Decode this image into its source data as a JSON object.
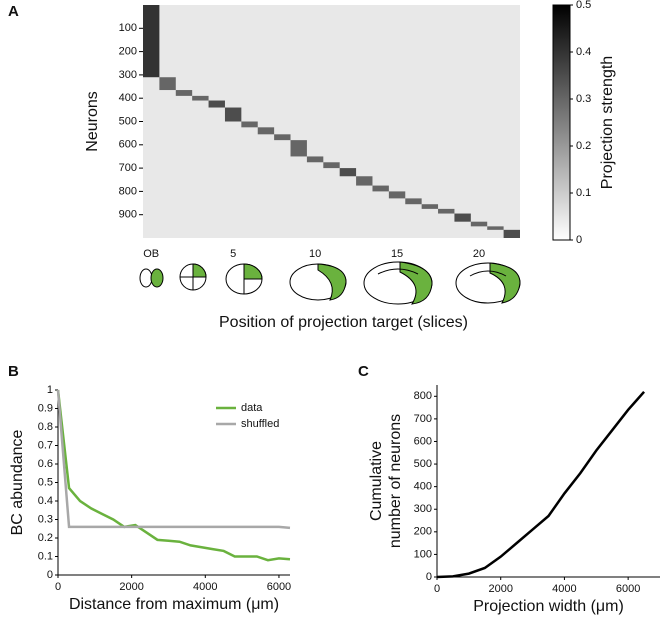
{
  "chart_data": [
    {
      "type": "heatmap",
      "panel_label": "A",
      "ylabel": "Neurons",
      "xlabel": "Position of projection target (slices)",
      "colorbar_label": "Projection strength",
      "categories": [
        "OB",
        null,
        null,
        null,
        null,
        "5",
        null,
        null,
        null,
        null,
        "10",
        null,
        null,
        null,
        null,
        "15",
        null,
        null,
        null,
        null,
        "20",
        null,
        null
      ],
      "ylim": [
        0,
        1000
      ],
      "yticks": [
        100,
        200,
        300,
        400,
        500,
        600,
        700,
        800,
        900
      ],
      "clim": [
        0,
        0.5
      ],
      "cticks": [
        0,
        0.1,
        0.2,
        0.3,
        0.4,
        0.5
      ],
      "segments": [
        {
          "start": 0,
          "end": 310,
          "strength": 0.4
        },
        {
          "start": 310,
          "end": 365,
          "strength": 0.3
        },
        {
          "start": 365,
          "end": 390,
          "strength": 0.3
        },
        {
          "start": 390,
          "end": 410,
          "strength": 0.3
        },
        {
          "start": 410,
          "end": 440,
          "strength": 0.35
        },
        {
          "start": 440,
          "end": 500,
          "strength": 0.35
        },
        {
          "start": 500,
          "end": 525,
          "strength": 0.3
        },
        {
          "start": 525,
          "end": 555,
          "strength": 0.3
        },
        {
          "start": 555,
          "end": 580,
          "strength": 0.3
        },
        {
          "start": 580,
          "end": 650,
          "strength": 0.3
        },
        {
          "start": 650,
          "end": 675,
          "strength": 0.3
        },
        {
          "start": 675,
          "end": 700,
          "strength": 0.3
        },
        {
          "start": 700,
          "end": 735,
          "strength": 0.35
        },
        {
          "start": 735,
          "end": 775,
          "strength": 0.3
        },
        {
          "start": 775,
          "end": 800,
          "strength": 0.3
        },
        {
          "start": 800,
          "end": 830,
          "strength": 0.3
        },
        {
          "start": 830,
          "end": 855,
          "strength": 0.3
        },
        {
          "start": 855,
          "end": 875,
          "strength": 0.3
        },
        {
          "start": 875,
          "end": 895,
          "strength": 0.3
        },
        {
          "start": 895,
          "end": 930,
          "strength": 0.35
        },
        {
          "start": 930,
          "end": 950,
          "strength": 0.3
        },
        {
          "start": 950,
          "end": 965,
          "strength": 0.3
        },
        {
          "start": 965,
          "end": 1000,
          "strength": 0.35
        }
      ]
    },
    {
      "type": "line",
      "panel_label": "B",
      "ylabel": "BC abundance",
      "xlabel": "Distance from maximum (μm)",
      "x": [
        0,
        300,
        600,
        900,
        1200,
        1500,
        1800,
        2100,
        2400,
        2700,
        3000,
        3300,
        3600,
        3900,
        4200,
        4500,
        4800,
        5100,
        5400,
        5700,
        6000,
        6300
      ],
      "xlim": [
        0,
        6300
      ],
      "xticks": [
        0,
        2000,
        4000,
        6000
      ],
      "ylim": [
        0,
        1
      ],
      "yticks": [
        0,
        0.1,
        0.2,
        0.3,
        0.4,
        0.5,
        0.6,
        0.7,
        0.8,
        0.9,
        1
      ],
      "series": [
        {
          "name": "data",
          "color": "#6ab23e",
          "values": [
            1.0,
            0.47,
            0.4,
            0.36,
            0.33,
            0.3,
            0.26,
            0.27,
            0.23,
            0.19,
            0.185,
            0.18,
            0.16,
            0.15,
            0.14,
            0.13,
            0.1,
            0.1,
            0.1,
            0.08,
            0.09,
            0.085
          ]
        },
        {
          "name": "shuffled",
          "color": "#a8a8a8",
          "values": [
            1.0,
            0.26,
            0.26,
            0.26,
            0.26,
            0.26,
            0.26,
            0.26,
            0.26,
            0.26,
            0.26,
            0.26,
            0.26,
            0.26,
            0.26,
            0.26,
            0.26,
            0.26,
            0.26,
            0.26,
            0.26,
            0.255
          ]
        }
      ]
    },
    {
      "type": "line",
      "panel_label": "C",
      "ylabel": [
        "Cumulative",
        "number of neurons"
      ],
      "xlabel": "Projection width (μm)",
      "x": [
        0,
        500,
        1000,
        1500,
        2000,
        2500,
        3000,
        3500,
        4000,
        4500,
        5000,
        5500,
        6000,
        6500
      ],
      "xlim": [
        0,
        7000
      ],
      "xticks": [
        0,
        2000,
        4000,
        6000
      ],
      "ylim": [
        0,
        850
      ],
      "yticks": [
        0,
        100,
        200,
        300,
        400,
        500,
        600,
        700,
        800
      ],
      "series": [
        {
          "color": "#000000",
          "values": [
            0,
            3,
            15,
            40,
            90,
            150,
            210,
            270,
            370,
            460,
            560,
            650,
            740,
            820
          ]
        }
      ]
    }
  ]
}
